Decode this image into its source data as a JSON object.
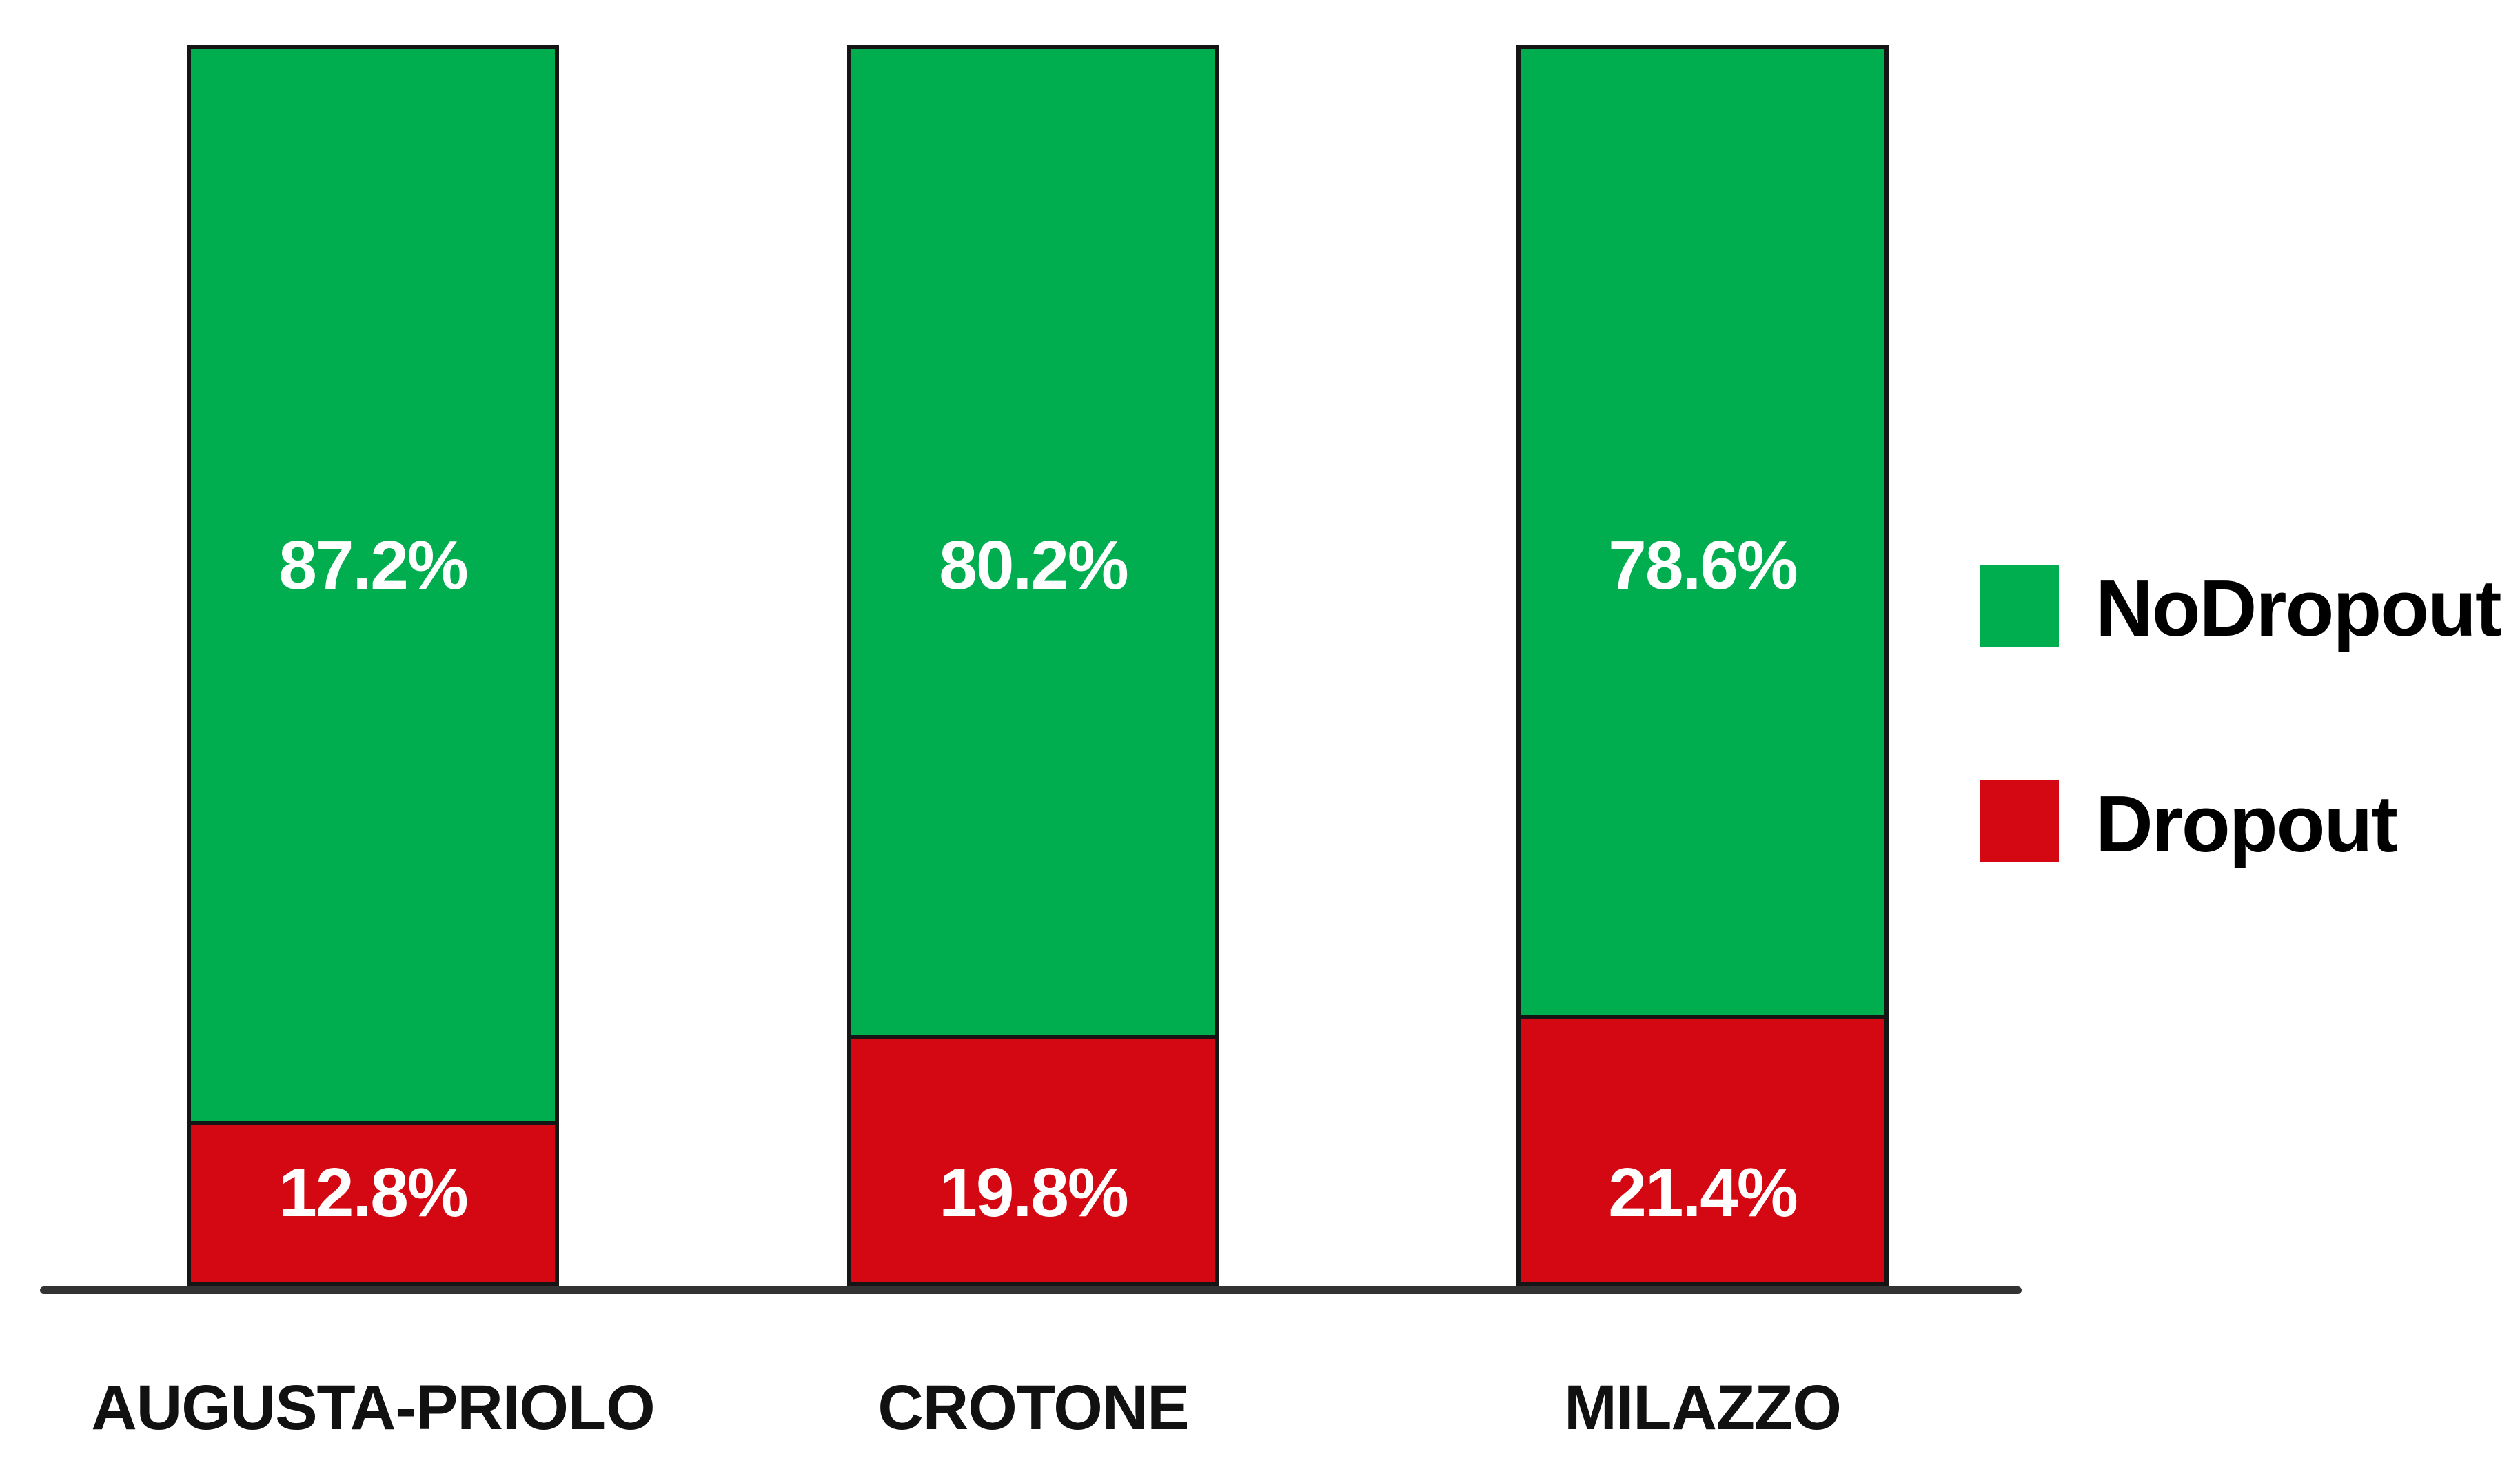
{
  "chart_data": {
    "type": "bar",
    "stacked": true,
    "orientation": "vertical",
    "title": "",
    "xlabel": "",
    "ylabel": "",
    "categories": [
      "AUGUSTA-PRIOLO",
      "CROTONE",
      "MILAZZO"
    ],
    "series": [
      {
        "name": "NoDropout",
        "color": "#00AE50",
        "values": [
          87.2,
          80.2,
          78.6
        ],
        "value_labels": [
          "87.2%",
          "80.2%",
          "78.6%"
        ]
      },
      {
        "name": "Dropout",
        "color": "#D40812",
        "values": [
          12.8,
          19.8,
          21.4
        ],
        "value_labels": [
          "12.8%",
          "19.8%",
          "21.4%"
        ]
      }
    ],
    "ylim": [
      0,
      100
    ],
    "grid": false,
    "legend_position": "right",
    "value_label_color": "#ffffff",
    "bar_outline_color": "#151515",
    "axis_line_color": "#333333",
    "category_label_color": "#111111",
    "legend_text_color": "#000000"
  }
}
